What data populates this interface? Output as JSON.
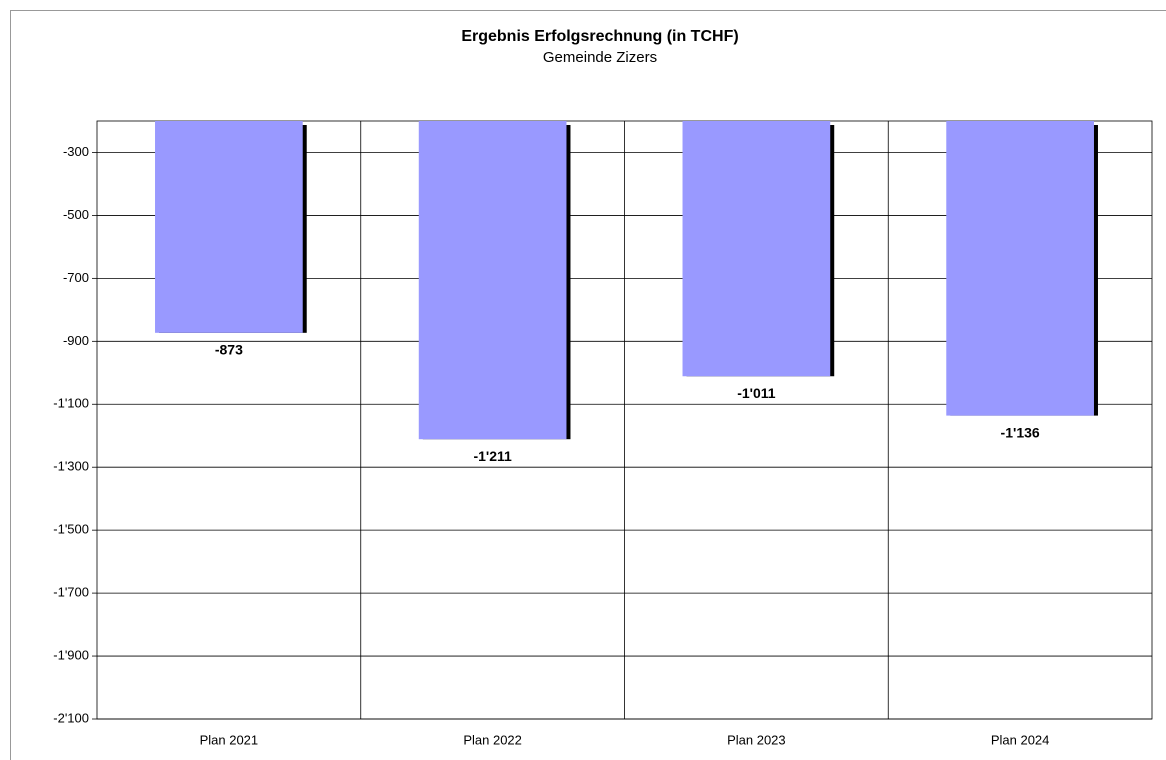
{
  "chart_data": {
    "type": "bar",
    "title": "Ergebnis Erfolgsrechnung (in TCHF)",
    "subtitle": "Gemeinde Zizers",
    "categories": [
      "Plan 2021",
      "Plan 2022",
      "Plan 2023",
      "Plan 2024"
    ],
    "values": [
      -873,
      -1211,
      -1011,
      -1136
    ],
    "value_labels": [
      "-873",
      "-1'211",
      "-1'011",
      "-1'136"
    ],
    "color": "#9999ff",
    "ylim": [
      -2100,
      -200
    ],
    "yticks": [
      -300,
      -500,
      -700,
      -900,
      {
        "value": -1100,
        "label": "-1'100"
      },
      {
        "value": -1300,
        "label": "-1'300"
      },
      {
        "value": -1500,
        "label": "-1'500"
      },
      {
        "value": -1700,
        "label": "-1'700"
      },
      {
        "value": -1900,
        "label": "-1'900"
      },
      {
        "value": -2100,
        "label": "-2'100"
      }
    ],
    "grid": true
  }
}
